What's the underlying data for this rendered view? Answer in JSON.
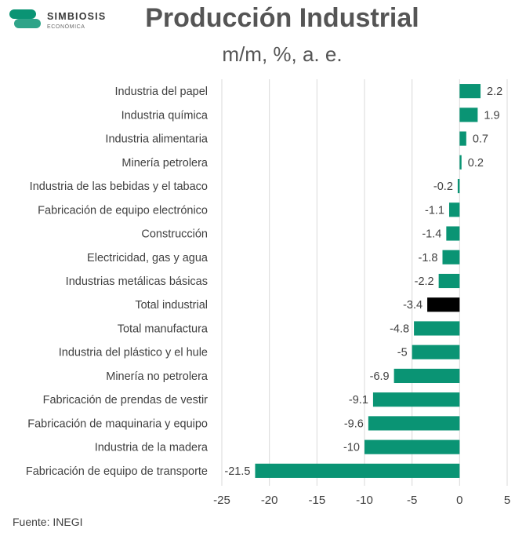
{
  "brand": {
    "name": "SIMBIOSIS",
    "sub": "ECONÓMICA",
    "colors": {
      "primary": "#0a9474",
      "secondary": "#1e7fb0"
    }
  },
  "source": "Fuente: INEGI",
  "chart_data": {
    "type": "bar",
    "orientation": "horizontal",
    "title": "Producción Industrial",
    "subtitle": "m/m, %, a. e.",
    "categories": [
      "Industria del papel",
      "Industria química",
      "Industria alimentaria",
      "Minería petrolera",
      "Industria de las bebidas y el tabaco",
      "Fabricación de equipo electrónico",
      "Construcción",
      "Electricidad, gas y agua",
      "Industrias metálicas básicas",
      "Total industrial",
      "Total manufactura",
      "Industria del plástico y el hule",
      "Minería no petrolera",
      "Fabricación de prendas de vestir",
      "Fabricación de maquinaria y equipo",
      "Industria de la madera",
      "Fabricación de equipo de transporte"
    ],
    "values": [
      2.2,
      1.9,
      0.7,
      0.2,
      -0.2,
      -1.1,
      -1.4,
      -1.8,
      -2.2,
      -3.4,
      -4.8,
      -5,
      -6.9,
      -9.1,
      -9.6,
      -10,
      -21.5
    ],
    "value_labels": [
      "2.2",
      "1.9",
      "0.7",
      "0.2",
      "-0.2",
      "-1.1",
      "-1.4",
      "-1.8",
      "-2.2",
      "-3.4",
      "-4.8",
      "-5",
      "-6.9",
      "-9.1",
      "-9.6",
      "-10",
      "-21.5"
    ],
    "highlight_category": "Total industrial",
    "bar_color": "#0a9474",
    "highlight_color": "#000000",
    "gridline_color": "#d9d9d9",
    "xlim": [
      -25,
      5
    ],
    "xticks": [
      -25,
      -20,
      -15,
      -10,
      -5,
      0,
      5
    ],
    "grid": true
  }
}
